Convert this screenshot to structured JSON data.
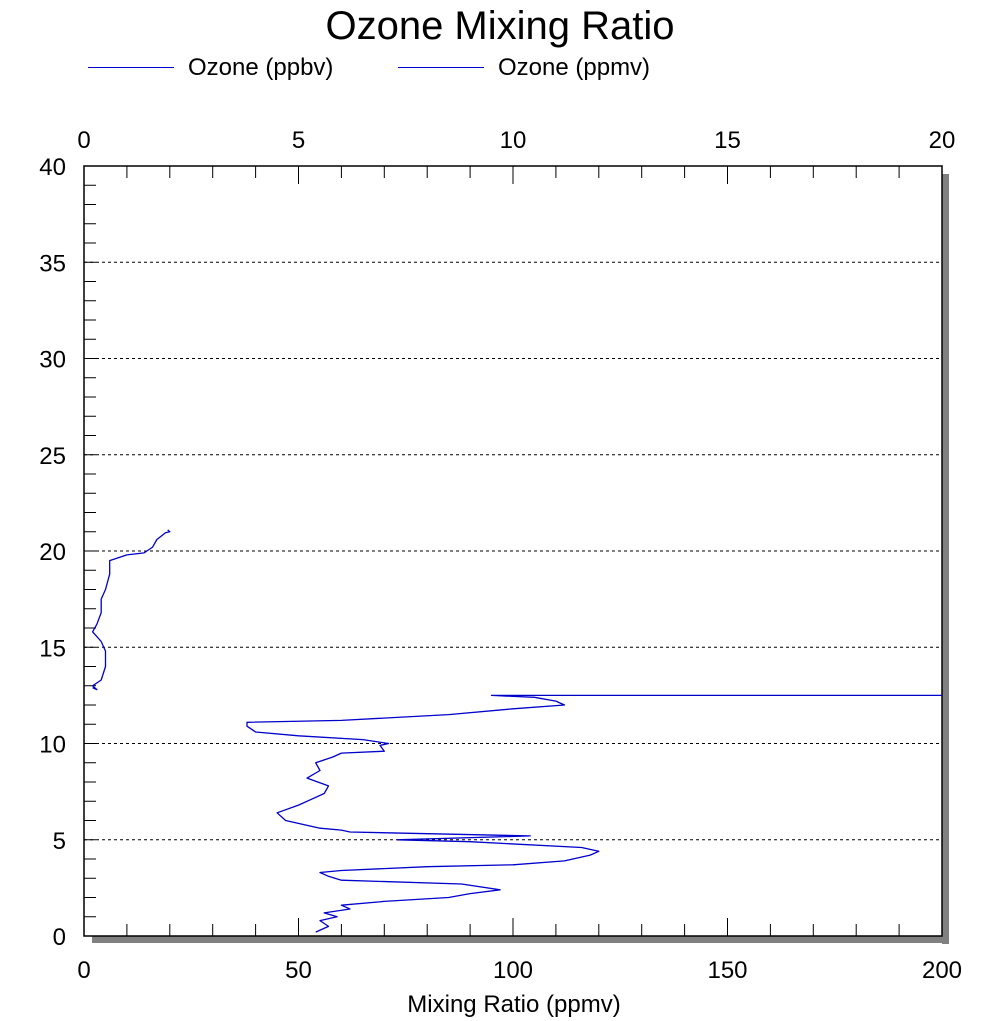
{
  "chart_data": {
    "type": "line",
    "title": "Ozone Mixing Ratio",
    "xlabel": "Mixing Ratio (ppmv)",
    "ylabel": "",
    "bottom_axis": {
      "range": [
        0,
        200
      ],
      "ticks": [
        "0",
        "50",
        "100",
        "150",
        "200"
      ]
    },
    "top_axis": {
      "range": [
        0,
        20
      ],
      "ticks": [
        "0",
        "5",
        "10",
        "15",
        "20"
      ]
    },
    "y_axis": {
      "range": [
        0,
        40
      ],
      "ticks": [
        "0",
        "5",
        "10",
        "15",
        "20",
        "25",
        "30",
        "35",
        "40"
      ]
    },
    "grid": "horizontal dotted",
    "legend_position": "top-left",
    "series": [
      {
        "name": "Ozone (ppbv)",
        "axis": "bottom",
        "color": "#0000cc",
        "points": [
          [
            54,
            0.2
          ],
          [
            57,
            0.5
          ],
          [
            55,
            0.8
          ],
          [
            59,
            1.0
          ],
          [
            56,
            1.2
          ],
          [
            62,
            1.4
          ],
          [
            60,
            1.6
          ],
          [
            70,
            1.8
          ],
          [
            85,
            2.0
          ],
          [
            90,
            2.2
          ],
          [
            97,
            2.4
          ],
          [
            88,
            2.7
          ],
          [
            60,
            2.9
          ],
          [
            57,
            3.1
          ],
          [
            55,
            3.3
          ],
          [
            60,
            3.4
          ],
          [
            80,
            3.6
          ],
          [
            100,
            3.7
          ],
          [
            112,
            3.9
          ],
          [
            118,
            4.2
          ],
          [
            120,
            4.4
          ],
          [
            116,
            4.6
          ],
          [
            90,
            4.9
          ],
          [
            73,
            5.0
          ],
          [
            104,
            5.2
          ],
          [
            62,
            5.4
          ],
          [
            60,
            5.5
          ],
          [
            55,
            5.6
          ],
          [
            47,
            6.0
          ],
          [
            45,
            6.4
          ],
          [
            50,
            6.8
          ],
          [
            53,
            7.1
          ],
          [
            56,
            7.4
          ],
          [
            57,
            7.8
          ],
          [
            52,
            8.2
          ],
          [
            55,
            8.6
          ],
          [
            54,
            9.0
          ],
          [
            58,
            9.3
          ],
          [
            60,
            9.5
          ],
          [
            70,
            9.6
          ],
          [
            69,
            9.9
          ],
          [
            71,
            10.0
          ],
          [
            65,
            10.2
          ],
          [
            50,
            10.4
          ],
          [
            40,
            10.6
          ],
          [
            38,
            10.9
          ],
          [
            38,
            11.1
          ],
          [
            60,
            11.2
          ],
          [
            85,
            11.5
          ],
          [
            100,
            11.8
          ],
          [
            112,
            12.0
          ],
          [
            110,
            12.2
          ],
          [
            105,
            12.4
          ],
          [
            95,
            12.5
          ],
          [
            200,
            12.5
          ]
        ]
      },
      {
        "name": "Ozone (ppmv)",
        "axis": "top",
        "color": "#0000cc",
        "points": [
          [
            0.2,
            12.9
          ],
          [
            0.3,
            12.8
          ],
          [
            0.2,
            13.0
          ],
          [
            0.4,
            13.3
          ],
          [
            0.5,
            14.0
          ],
          [
            0.5,
            14.8
          ],
          [
            0.4,
            15.3
          ],
          [
            0.2,
            15.8
          ],
          [
            0.3,
            16.2
          ],
          [
            0.4,
            16.8
          ],
          [
            0.4,
            17.5
          ],
          [
            0.5,
            18.0
          ],
          [
            0.6,
            18.8
          ],
          [
            0.6,
            19.5
          ],
          [
            1.0,
            19.8
          ],
          [
            1.4,
            19.9
          ],
          [
            1.6,
            20.2
          ],
          [
            1.7,
            20.6
          ],
          [
            1.9,
            20.95
          ],
          [
            2.0,
            21.0
          ],
          [
            1.95,
            21.1
          ]
        ]
      }
    ]
  }
}
